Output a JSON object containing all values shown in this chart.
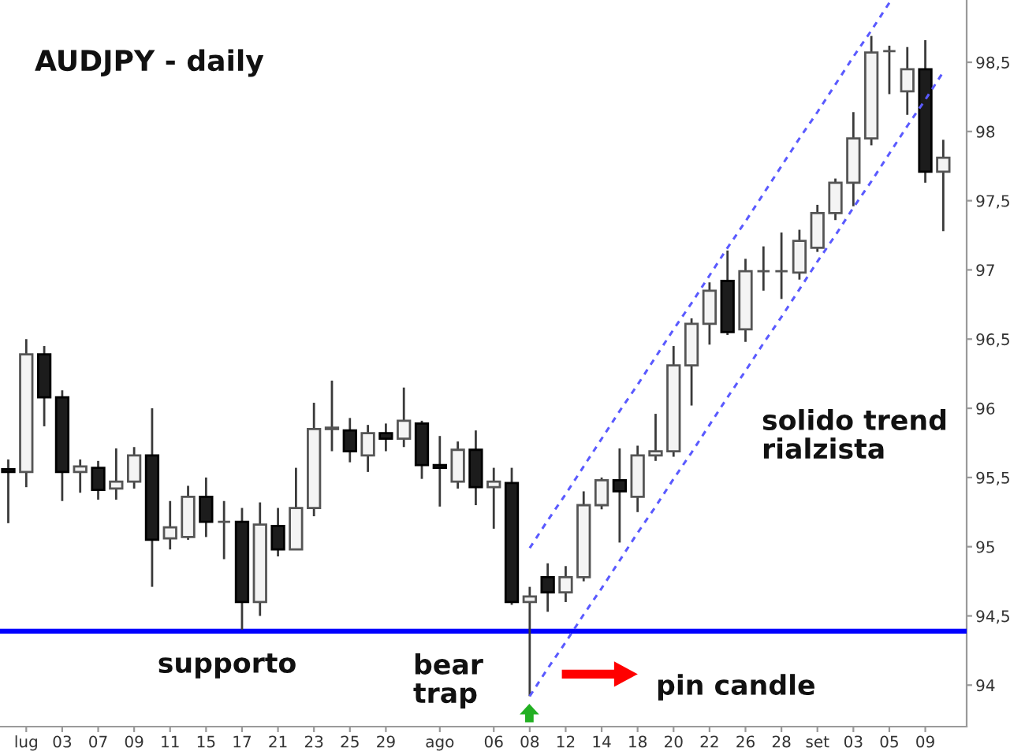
{
  "chart_data": {
    "type": "candlestick",
    "title": "AUDJPY - daily",
    "categories": [
      null,
      "lug",
      null,
      "03",
      null,
      "07",
      null,
      "09",
      null,
      "11",
      null,
      "15",
      null,
      "17",
      null,
      "21",
      null,
      "23",
      null,
      "25",
      null,
      "29",
      null,
      null,
      "ago",
      null,
      null,
      "06",
      null,
      "08",
      null,
      "12",
      null,
      "14",
      null,
      "18",
      null,
      "20",
      null,
      "22",
      null,
      "26",
      null,
      "28",
      null,
      "set",
      null,
      "03",
      null,
      "05",
      null,
      "09",
      null
    ],
    "ohlc": [
      [
        95.56,
        95.63,
        95.17,
        95.54
      ],
      [
        95.54,
        96.5,
        95.43,
        96.39
      ],
      [
        96.39,
        96.45,
        95.87,
        96.08
      ],
      [
        96.08,
        96.13,
        95.33,
        95.54
      ],
      [
        95.54,
        95.63,
        95.39,
        95.58
      ],
      [
        95.57,
        95.62,
        95.34,
        95.41
      ],
      [
        95.42,
        95.71,
        95.34,
        95.47
      ],
      [
        95.47,
        95.72,
        95.42,
        95.66
      ],
      [
        95.66,
        96.0,
        94.71,
        95.05
      ],
      [
        95.06,
        95.33,
        94.98,
        95.14
      ],
      [
        95.07,
        95.44,
        95.05,
        95.36
      ],
      [
        95.36,
        95.5,
        95.07,
        95.18
      ],
      [
        95.18,
        95.33,
        94.91,
        95.18
      ],
      [
        95.18,
        95.28,
        94.4,
        94.6
      ],
      [
        94.6,
        95.32,
        94.5,
        95.16
      ],
      [
        95.15,
        95.28,
        94.93,
        94.98
      ],
      [
        94.98,
        95.57,
        94.98,
        95.28
      ],
      [
        95.28,
        96.04,
        95.22,
        95.85
      ],
      [
        95.85,
        96.2,
        95.69,
        95.86
      ],
      [
        95.84,
        95.93,
        95.61,
        95.69
      ],
      [
        95.66,
        95.88,
        95.54,
        95.82
      ],
      [
        95.82,
        95.89,
        95.69,
        95.78
      ],
      [
        95.78,
        96.15,
        95.72,
        95.91
      ],
      [
        95.89,
        95.91,
        95.49,
        95.59
      ],
      [
        95.59,
        95.8,
        95.29,
        95.57
      ],
      [
        95.47,
        95.76,
        95.42,
        95.7
      ],
      [
        95.7,
        95.84,
        95.3,
        95.43
      ],
      [
        95.43,
        95.57,
        95.13,
        95.47
      ],
      [
        95.46,
        95.57,
        94.58,
        94.6
      ],
      [
        94.6,
        94.71,
        93.92,
        94.64
      ],
      [
        94.78,
        94.88,
        94.53,
        94.67
      ],
      [
        94.67,
        94.86,
        94.6,
        94.78
      ],
      [
        94.78,
        95.4,
        94.75,
        95.3
      ],
      [
        95.3,
        95.5,
        95.27,
        95.48
      ],
      [
        95.48,
        95.71,
        95.03,
        95.4
      ],
      [
        95.36,
        95.73,
        95.25,
        95.66
      ],
      [
        95.66,
        95.96,
        95.62,
        95.69
      ],
      [
        95.69,
        96.45,
        95.65,
        96.31
      ],
      [
        96.31,
        96.65,
        96.02,
        96.61
      ],
      [
        96.61,
        96.91,
        96.46,
        96.85
      ],
      [
        96.92,
        97.14,
        96.53,
        96.55
      ],
      [
        96.57,
        97.08,
        96.48,
        96.99
      ],
      [
        96.99,
        97.17,
        96.85,
        96.99
      ],
      [
        96.99,
        97.27,
        96.79,
        96.99
      ],
      [
        96.98,
        97.29,
        96.93,
        97.21
      ],
      [
        97.16,
        97.47,
        97.13,
        97.41
      ],
      [
        97.41,
        97.66,
        97.36,
        97.63
      ],
      [
        97.63,
        98.14,
        97.46,
        97.95
      ],
      [
        97.95,
        98.69,
        97.9,
        98.57
      ],
      [
        98.58,
        98.62,
        98.27,
        98.58
      ],
      [
        98.29,
        98.61,
        98.12,
        98.45
      ],
      [
        98.45,
        98.66,
        97.63,
        97.71
      ],
      [
        97.71,
        97.94,
        97.28,
        97.81
      ]
    ],
    "series": [
      {
        "type": "line",
        "color": "#5a5aff",
        "line_style": "dashed",
        "values": [
          null,
          null,
          null,
          null,
          null,
          null,
          null,
          null,
          null,
          null,
          null,
          null,
          null,
          null,
          null,
          null,
          null,
          null,
          null,
          null,
          null,
          null,
          null,
          null,
          null,
          null,
          null,
          null,
          null,
          94.99,
          95.19,
          95.38,
          95.58,
          95.78,
          95.98,
          96.17,
          96.37,
          96.57,
          96.76,
          96.96,
          97.16,
          97.35,
          97.55,
          97.75,
          97.95,
          98.14,
          98.34,
          98.54,
          98.73,
          98.93,
          null,
          null,
          null
        ]
      },
      {
        "type": "line",
        "color": "#5a5aff",
        "line_style": "dashed",
        "values": [
          null,
          null,
          null,
          null,
          null,
          null,
          null,
          null,
          null,
          null,
          null,
          null,
          null,
          null,
          null,
          null,
          null,
          null,
          null,
          null,
          null,
          null,
          null,
          null,
          null,
          null,
          null,
          null,
          null,
          93.92,
          94.12,
          94.31,
          94.51,
          94.7,
          94.9,
          95.1,
          95.29,
          95.49,
          95.68,
          95.88,
          96.08,
          96.27,
          96.47,
          96.66,
          96.86,
          97.06,
          97.25,
          97.45,
          97.64,
          97.84,
          98.04,
          98.23,
          98.43
        ]
      }
    ],
    "ylim": [
      93.7,
      98.95
    ],
    "yticks": [
      94,
      {
        "value": 94.5,
        "label": "94,5"
      },
      95,
      {
        "value": 95.5,
        "label": "95,5"
      },
      96,
      {
        "value": 96.5,
        "label": "96,5"
      },
      97,
      {
        "value": 97.5,
        "label": "97,5"
      },
      98,
      {
        "value": 98.5,
        "label": "98,5"
      }
    ],
    "ref_lines": [
      {
        "axis": "y",
        "value": 94.39,
        "label": "supporto",
        "color": "#0000ff"
      }
    ],
    "annotations": [
      "bear\ntrap",
      "pin candle",
      "solido trend\nrialzista"
    ]
  }
}
